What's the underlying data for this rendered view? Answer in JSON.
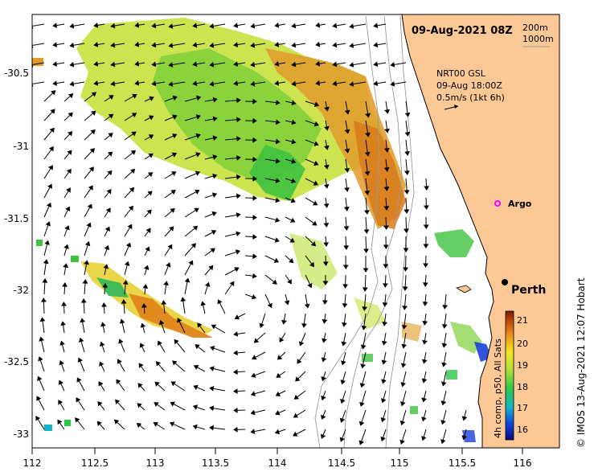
{
  "map": {
    "date_label": "09-Aug-2021 08Z",
    "isobath_label_1": "200m",
    "isobath_label_2": "1000m",
    "current_source": "NRT00 GSL",
    "current_time": "09-Aug 18:00Z",
    "current_scale": "0.5m/s (1kt 6h)",
    "argo_label": "Argo",
    "city_label": "Perth",
    "credit": "© IMOS 13-Aug-2021 12:07 Hobart",
    "x_ticks": [
      "112",
      "112.5",
      "113",
      "113.5",
      "114",
      "114.5",
      "115",
      "115.5",
      "116"
    ],
    "y_ticks": [
      "-30.5",
      "-31",
      "-31.5",
      "-32",
      "-32.5",
      "-33"
    ],
    "colorbar": {
      "label": "4h comp, p50, All Sats",
      "ticks": [
        "21",
        "20",
        "19",
        "18",
        "17",
        "16"
      ]
    },
    "colors": {
      "land": "#fbc896",
      "warm": "#e08a1c",
      "mid": "#d8e23a",
      "cool": "#3fc23f",
      "argo": "#ff00ff"
    }
  }
}
